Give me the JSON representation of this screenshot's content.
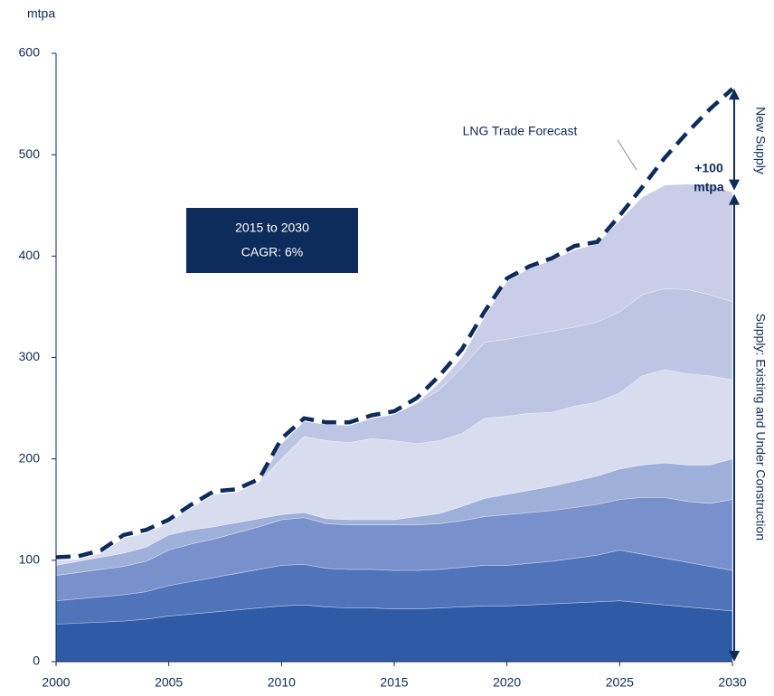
{
  "chart_data": {
    "type": "stacked_area",
    "y_label": "mtpa",
    "x": [
      2000,
      2001,
      2002,
      2003,
      2004,
      2005,
      2006,
      2007,
      2008,
      2009,
      2010,
      2011,
      2012,
      2013,
      2014,
      2015,
      2016,
      2017,
      2018,
      2019,
      2020,
      2021,
      2022,
      2023,
      2024,
      2025,
      2026,
      2027,
      2028,
      2029,
      2030
    ],
    "series": [
      {
        "color": "#2f5ba6",
        "values": [
          37,
          38,
          39,
          40,
          42,
          45,
          47,
          49,
          51,
          53,
          55,
          56,
          54,
          53,
          53,
          52,
          52,
          53,
          54,
          55,
          55,
          56,
          57,
          58,
          59,
          60,
          58,
          56,
          54,
          52,
          50
        ]
      },
      {
        "color": "#4f74b9",
        "values": [
          23,
          24,
          25,
          26,
          27,
          30,
          32,
          34,
          36,
          38,
          40,
          40,
          38,
          38,
          38,
          38,
          38,
          38,
          39,
          40,
          40,
          41,
          42,
          44,
          46,
          50,
          48,
          46,
          44,
          42,
          40
        ]
      },
      {
        "color": "#7890cb",
        "values": [
          25,
          26,
          27,
          28,
          30,
          35,
          37,
          38,
          40,
          42,
          45,
          46,
          44,
          44,
          44,
          45,
          45,
          45,
          46,
          48,
          50,
          50,
          50,
          50,
          50,
          50,
          56,
          60,
          60,
          62,
          70
        ]
      },
      {
        "color": "#9eafd9",
        "values": [
          10,
          11,
          12,
          13,
          14,
          15,
          14,
          12,
          10,
          8,
          5,
          5,
          5,
          5,
          5,
          5,
          8,
          10,
          14,
          18,
          20,
          22,
          24,
          26,
          28,
          30,
          32,
          34,
          36,
          38,
          40
        ]
      },
      {
        "color": "#d7dcef",
        "values": [
          5,
          2,
          4,
          15,
          14,
          12,
          22,
          32,
          30,
          36,
          55,
          75,
          77,
          76,
          80,
          78,
          72,
          72,
          72,
          79,
          77,
          76,
          73,
          74,
          73,
          75,
          88,
          92,
          90,
          88,
          78
        ]
      },
      {
        "color": "#bcc5e3",
        "values": [
          0,
          0,
          0,
          0,
          0,
          0,
          0,
          0,
          0,
          0,
          15,
          15,
          16,
          17,
          20,
          26,
          40,
          50,
          65,
          75,
          76,
          77,
          80,
          78,
          79,
          80,
          80,
          80,
          83,
          80,
          77
        ]
      },
      {
        "color": "#c9cde7",
        "values": [
          0,
          0,
          0,
          0,
          0,
          0,
          0,
          0,
          0,
          0,
          0,
          0,
          0,
          0,
          0,
          0,
          0,
          7,
          10,
          25,
          57,
          66,
          70,
          76,
          77,
          90,
          96,
          102,
          104,
          108,
          108
        ]
      }
    ],
    "forecast": {
      "name": "LNG Trade Forecast",
      "color": "#0d2b5b",
      "values": [
        103,
        104,
        110,
        125,
        130,
        140,
        155,
        168,
        170,
        180,
        220,
        240,
        236,
        236,
        243,
        247,
        260,
        282,
        308,
        345,
        378,
        390,
        398,
        410,
        414,
        440,
        468,
        497,
        522,
        545,
        565
      ]
    },
    "ylim": [
      0,
      600
    ],
    "yticks": [
      0,
      100,
      200,
      300,
      400,
      500,
      600
    ],
    "xlim": [
      2000,
      2030
    ],
    "xticks": [
      2000,
      2005,
      2010,
      2015,
      2020,
      2025,
      2030
    ],
    "callout": [
      "2015 to 2030",
      "CAGR: 6%"
    ],
    "new_supply_label": [
      "+100",
      "mtpa"
    ],
    "right_labels": [
      "New Supply",
      "Supply: Existing and Under Construction"
    ]
  }
}
